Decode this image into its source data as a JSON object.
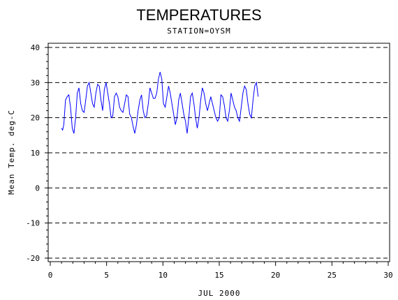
{
  "chart_data": {
    "type": "line",
    "title": "TEMPERATURES",
    "subtitle": "STATION=OYSM",
    "xlabel": "JUL 2000",
    "ylabel": "Mean Temp. deg-C",
    "xlim": [
      0,
      30
    ],
    "ylim": [
      -20,
      40
    ],
    "xticks": [
      0,
      5,
      10,
      15,
      20,
      25,
      30
    ],
    "yticks": [
      -20,
      -10,
      0,
      10,
      20,
      30,
      40
    ],
    "grid": "horizontal-dashed",
    "series": [
      {
        "color": "#0000ff",
        "x": [
          1.0,
          1.1,
          1.2,
          1.35,
          1.5,
          1.65,
          1.8,
          1.95,
          2.1,
          2.25,
          2.4,
          2.55,
          2.7,
          2.85,
          3.0,
          3.15,
          3.3,
          3.45,
          3.6,
          3.75,
          3.9,
          4.05,
          4.2,
          4.35,
          4.5,
          4.65,
          4.8,
          4.95,
          5.1,
          5.25,
          5.4,
          5.55,
          5.7,
          5.85,
          6.0,
          6.15,
          6.3,
          6.45,
          6.6,
          6.75,
          6.9,
          7.05,
          7.2,
          7.35,
          7.5,
          7.65,
          7.8,
          7.95,
          8.1,
          8.25,
          8.4,
          8.55,
          8.7,
          8.85,
          9.0,
          9.15,
          9.3,
          9.45,
          9.6,
          9.75,
          9.9,
          10.05,
          10.2,
          10.35,
          10.5,
          10.65,
          10.8,
          10.95,
          11.1,
          11.25,
          11.4,
          11.55,
          11.7,
          11.85,
          12.0,
          12.15,
          12.3,
          12.45,
          12.6,
          12.75,
          12.9,
          13.05,
          13.2,
          13.35,
          13.5,
          13.65,
          13.8,
          13.95,
          14.1,
          14.25,
          14.4,
          14.55,
          14.7,
          14.85,
          15.0,
          15.15,
          15.3,
          15.45,
          15.6,
          15.75,
          15.9,
          16.05,
          16.2,
          16.35,
          16.5,
          16.65,
          16.8,
          16.95,
          17.1,
          17.25,
          17.4,
          17.55,
          17.7,
          17.85,
          18.0,
          18.15,
          18.3,
          18.45
        ],
        "y": [
          17,
          16.5,
          18,
          25,
          26,
          26.5,
          23,
          17,
          15.5,
          20,
          27,
          28.5,
          24,
          22,
          21.5,
          25,
          29,
          30,
          27,
          24,
          23,
          27,
          29.5,
          29,
          25,
          22,
          28,
          30,
          27,
          24,
          20,
          20.5,
          26,
          27,
          26,
          23,
          22,
          21.5,
          24,
          26.5,
          26,
          21,
          20,
          17.5,
          15.5,
          18,
          22,
          25,
          26.5,
          22,
          20,
          20.5,
          24,
          28.5,
          27,
          25.5,
          25.5,
          27,
          31,
          33,
          31,
          24,
          23,
          26,
          29,
          27,
          24,
          21,
          18,
          20,
          25,
          27,
          24,
          21,
          19,
          15.5,
          20,
          26,
          27,
          24,
          20,
          17,
          20,
          25,
          28.5,
          27,
          24,
          22,
          24,
          26,
          24,
          22,
          20,
          19,
          20,
          26.5,
          26,
          23.5,
          20,
          19,
          22,
          27,
          25,
          23,
          22,
          20,
          19,
          23,
          27,
          29,
          28,
          24,
          21,
          20,
          25,
          29,
          30,
          26
        ]
      }
    ]
  }
}
